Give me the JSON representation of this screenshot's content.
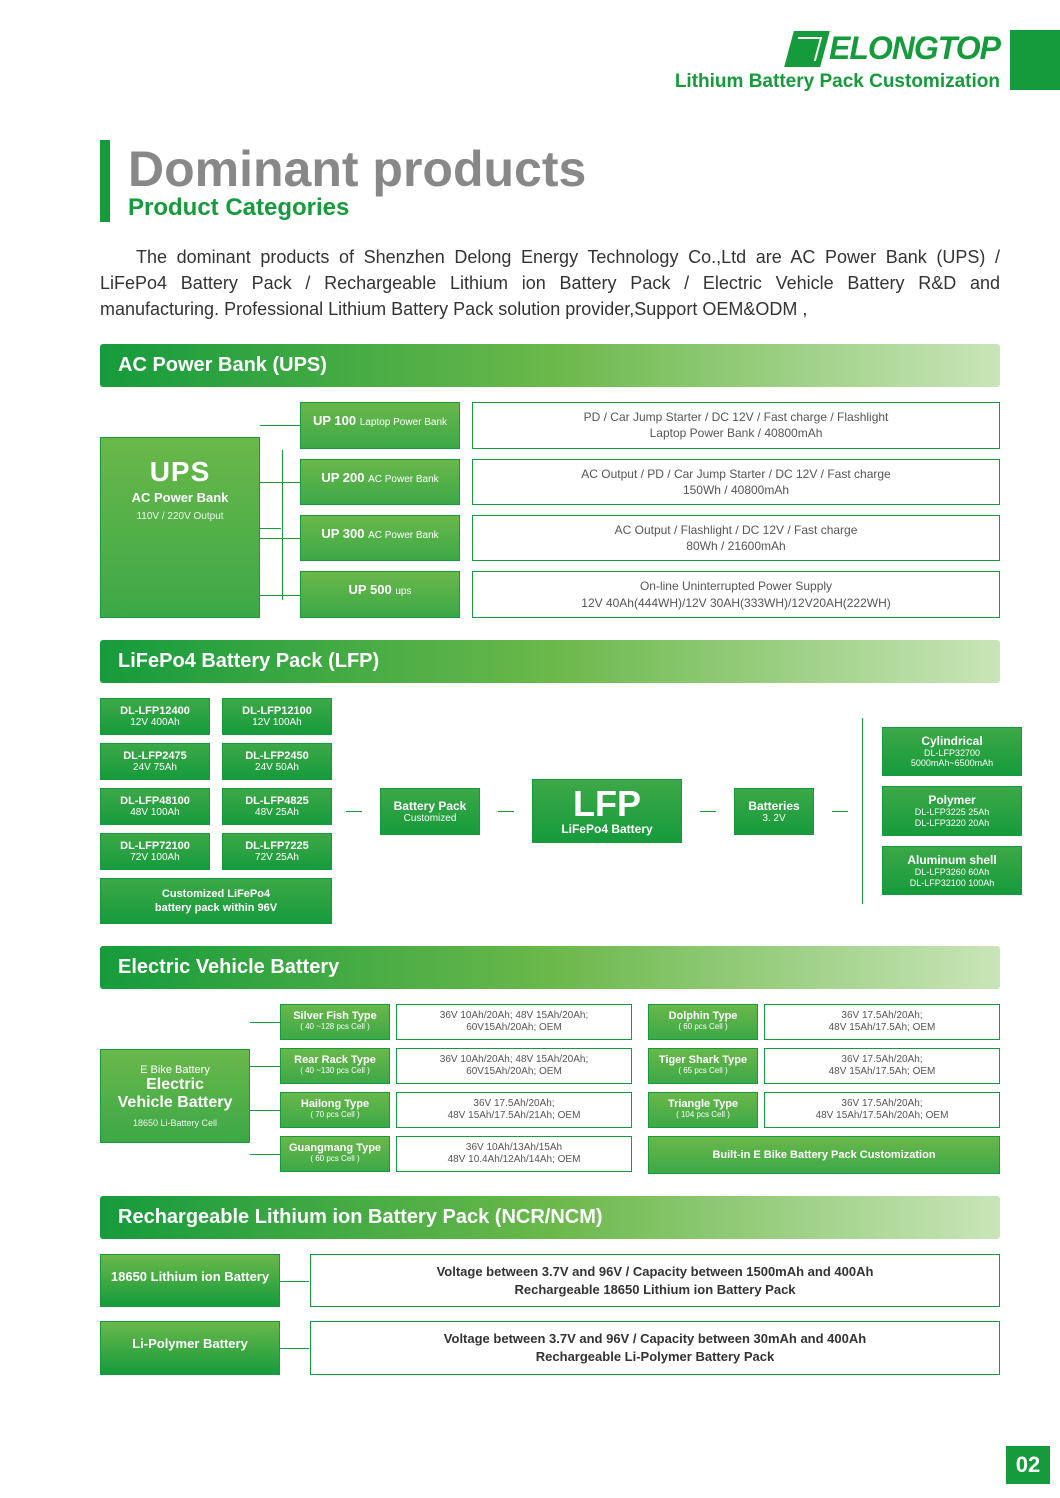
{
  "brand": {
    "name": "ELONGTOP",
    "tagline": "Lithium Battery Pack Customization"
  },
  "title": "Dominant products",
  "subtitle": "Product Categories",
  "intro": "The dominant products of Shenzhen Delong Energy Technology Co.,Ltd are AC Power Bank (UPS) / LiFePo4 Battery Pack / Rechargeable Lithium ion Battery Pack / Electric Vehicle Battery R&D and manufacturing. Professional Lithium Battery Pack solution provider,Support OEM&ODM ,",
  "page_number": "02",
  "ups": {
    "header": "AC Power Bank (UPS)",
    "root": {
      "big": "UPS",
      "mid": "AC Power Bank",
      "sm": "110V / 220V Output"
    },
    "rows": [
      {
        "chip_t": "UP 100",
        "chip_s": "Laptop Power Bank",
        "desc1": "PD / Car Jump Starter / DC 12V / Fast charge / Flashlight",
        "desc2": "Laptop Power Bank / 40800mAh"
      },
      {
        "chip_t": "UP 200",
        "chip_s": "AC Power Bank",
        "desc1": "AC Output / PD / Car Jump Starter / DC 12V / Fast charge",
        "desc2": "150Wh / 40800mAh"
      },
      {
        "chip_t": "UP 300",
        "chip_s": "AC Power Bank",
        "desc1": "AC Output  / Flashlight / DC 12V / Fast charge",
        "desc2": "80Wh / 21600mAh"
      },
      {
        "chip_t": "UP 500",
        "chip_s": "ups",
        "desc1": "On-line Uninterrupted Power Supply",
        "desc2": "12V 40Ah(444WH)/12V 30AH(333WH)/12V20AH(222WH)"
      }
    ]
  },
  "lfp": {
    "header": "LiFePo4 Battery Pack (LFP)",
    "left_col_a": [
      {
        "t": "DL-LFP12400",
        "s": "12V  400Ah"
      },
      {
        "t": "DL-LFP2475",
        "s": "24V  75Ah"
      },
      {
        "t": "DL-LFP48100",
        "s": "48V  100Ah"
      },
      {
        "t": "DL-LFP72100",
        "s": "72V  100Ah"
      }
    ],
    "left_col_b": [
      {
        "t": "DL-LFP12100",
        "s": "12V  100Ah"
      },
      {
        "t": "DL-LFP2450",
        "s": "24V  50Ah"
      },
      {
        "t": "DL-LFP4825",
        "s": "48V  25Ah"
      },
      {
        "t": "DL-LFP7225",
        "s": "72V  25Ah"
      }
    ],
    "wide": "Customized LiFePo4\nbattery pack within 96V",
    "mid": {
      "t": "Battery Pack",
      "s": "Customized"
    },
    "main": {
      "big": "LFP",
      "s": "LiFePo4 Battery"
    },
    "batt": {
      "t": "Batteries",
      "s": "3. 2V"
    },
    "right": [
      {
        "t": "Cylindrical",
        "s": "DL-LFP32700\n5000mAh~6500mAh"
      },
      {
        "t": "Polymer",
        "s": "DL-LFP3225 25Ah\nDL-LFP3220 20Ah"
      },
      {
        "t": "Aluminum shell",
        "s": "DL-LFP3260  60Ah\nDL-LFP32100 100Ah"
      }
    ]
  },
  "ev": {
    "header": "Electric Vehicle Battery",
    "root": {
      "t1": "E Bike Battery",
      "t2": "Electric\nVehicle Battery",
      "t3": "18650 Li-Battery Cell"
    },
    "left": [
      {
        "t": "Silver Fish Type",
        "s": "( 40 ~128 pcs Cell )",
        "d": "36V 10Ah/20Ah; 48V 15Ah/20Ah;\n60V15Ah/20Ah; OEM"
      },
      {
        "t": "Rear Rack Type",
        "s": "( 40 ~130 pcs Cell )",
        "d": "36V 10Ah/20Ah; 48V 15Ah/20Ah;\n60V15Ah/20Ah; OEM"
      },
      {
        "t": "Hailong Type",
        "s": "( 70 pcs Cell )",
        "d": "36V 17.5Ah/20Ah;\n48V 15Ah/17.5Ah/21Ah; OEM"
      },
      {
        "t": "Guangmang Type",
        "s": "( 60 pcs Cell )",
        "d": "36V 10Ah/13Ah/15Ah\n48V 10.4Ah/12Ah/14Ah; OEM"
      }
    ],
    "right": [
      {
        "t": "Dolphin  Type",
        "s": "( 60 pcs Cell )",
        "d": "36V 17.5Ah/20Ah;\n48V 15Ah/17.5Ah; OEM"
      },
      {
        "t": "Tiger Shark Type",
        "s": "( 65 pcs Cell )",
        "d": "36V 17.5Ah/20Ah;\n48V 15Ah/17.5Ah; OEM"
      },
      {
        "t": "Triangle Type",
        "s": "( 104 pcs Cell )",
        "d": "36V 17.5Ah/20Ah;\n48V 15Ah/17.5Ah/20Ah; OEM"
      }
    ],
    "built": "Built-in E  Bike Battery Pack Customization"
  },
  "ncr": {
    "header": "Rechargeable Lithium ion Battery Pack (NCR/NCM)",
    "rows": [
      {
        "chip": "18650 Lithium ion Battery",
        "d1": "Voltage between 3.7V and 96V / Capacity between 1500mAh and 400Ah",
        "d2": "Rechargeable 18650 Lithium ion Battery Pack"
      },
      {
        "chip": "Li-Polymer Battery",
        "d1": "Voltage between 3.7V and 96V / Capacity between 30mAh and 400Ah",
        "d2": "Rechargeable Li-Polymer Battery Pack"
      }
    ]
  }
}
